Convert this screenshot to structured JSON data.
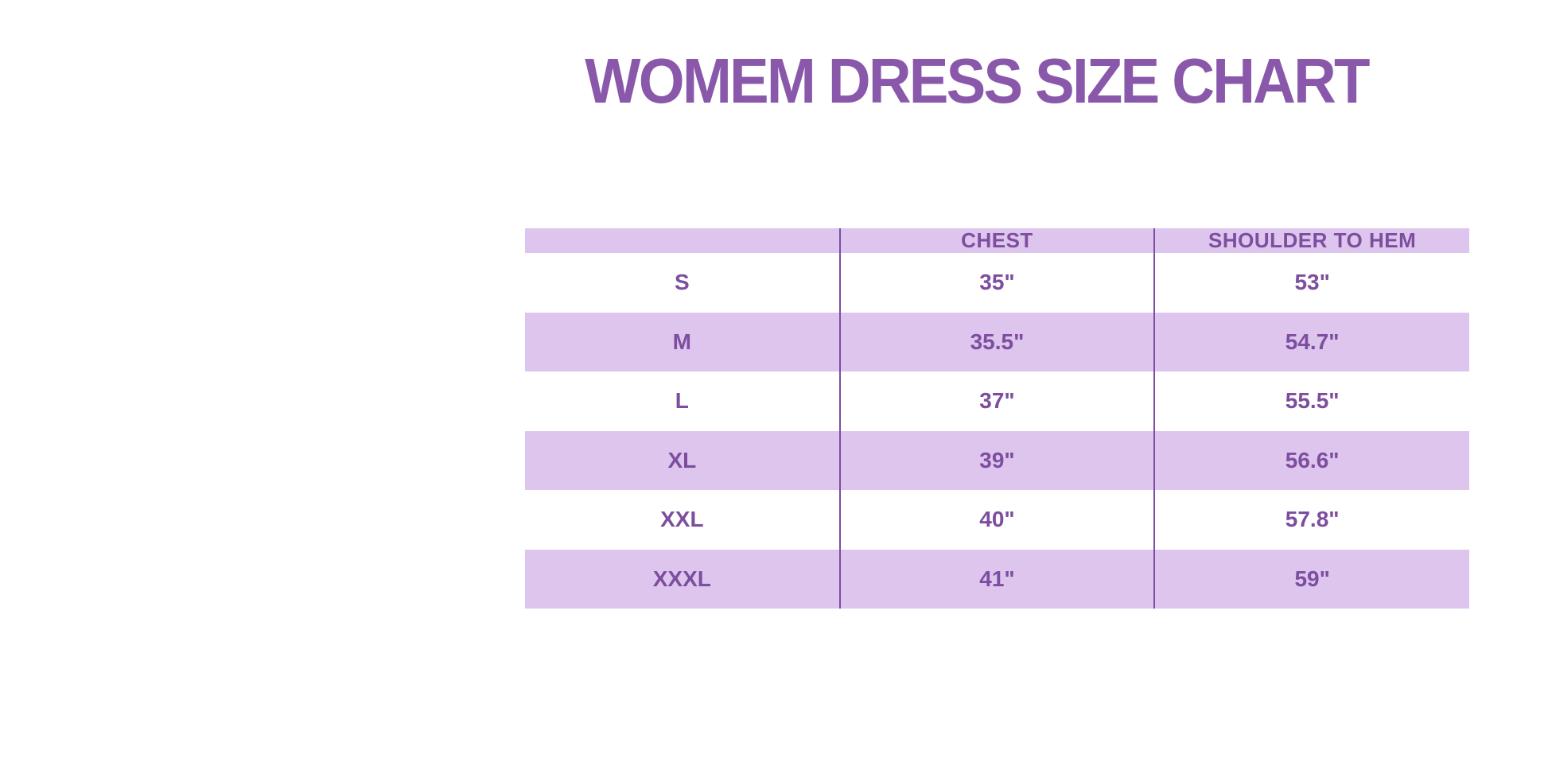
{
  "title": "WOMEM DRESS SIZE CHART",
  "colors": {
    "background": "#ffffff",
    "title_text": "#8a58ab",
    "cell_text": "#7d4e9f",
    "row_highlight": "#ddc5ee",
    "column_divider": "#7c4da0"
  },
  "chart_data": {
    "type": "table",
    "title": "WOMEM DRESS SIZE CHART",
    "columns": [
      "",
      "CHEST",
      "SHOULDER TO HEM"
    ],
    "rows": [
      [
        "S",
        "35\"",
        "53\""
      ],
      [
        "M",
        "35.5\"",
        "54.7\""
      ],
      [
        "L",
        "37\"",
        "55.5\""
      ],
      [
        "XL",
        "39\"",
        "56.6\""
      ],
      [
        "XXL",
        "40\"",
        "57.8\""
      ],
      [
        "XXXL",
        "41\"",
        "59\""
      ]
    ],
    "layout": {
      "header_fill": "lavender",
      "row_striping": "white / lavender alternating",
      "column_count": 3,
      "row_count": 7
    }
  }
}
